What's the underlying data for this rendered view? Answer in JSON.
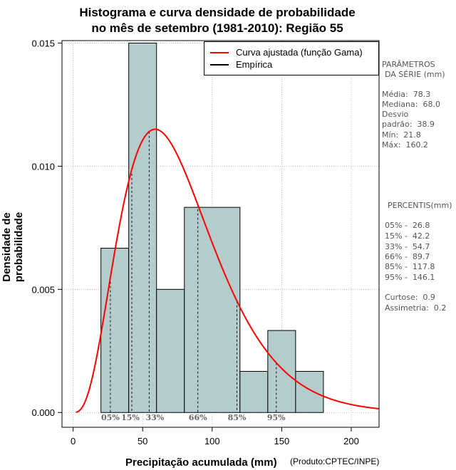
{
  "title": {
    "line1": "Histograma e curva densidade de probabilidade",
    "line2": "no mês de setembro (1981-2010): Região 55"
  },
  "axes": {
    "xlabel": "Precipitação acumulada (mm)",
    "ylabel": "Densidade de probabilidade",
    "credit": "(Produto:CPTEC/INPE)"
  },
  "legend": {
    "fitted": "Curva ajustada (função Gama)",
    "empirical": "Empírica"
  },
  "params": {
    "header1": "PARÂMETROS",
    "header2": "DA SÉRIE (mm)",
    "mean": "Média:  78.3",
    "median": "Mediana:  68.0",
    "sd_label": "Desvio",
    "sd": "padrão:  38.9",
    "min": "Mín:  21.8",
    "max": "Máx:  160.2"
  },
  "percentiles": {
    "header": "PERCENTIS(mm)",
    "p05": "05% -  26.8",
    "p15": "15% -  42.2",
    "p33": "33% -  54.7",
    "p66": "66% -  89.7",
    "p85": "85% -  117.8",
    "p95": "95% -  146.1",
    "kurtosis": "Curtose:  0.9",
    "skewness": "Assimetria:  0.2"
  },
  "colors": {
    "bar_fill": "#b4cccc",
    "curve": "#ff0000",
    "grid": "#aaaaaa"
  },
  "chart_data": {
    "type": "bar",
    "title": "Histograma e curva densidade de probabilidade no mês de setembro (1981-2010): Região 55",
    "xlabel": "Precipitação acumulada (mm)",
    "ylabel": "Densidade de probabilidade",
    "xlim": [
      -8,
      220
    ],
    "ylim": [
      -0.0006,
      0.0151
    ],
    "xticks": [
      0,
      50,
      100,
      150,
      200
    ],
    "yticks": [
      0.0,
      0.005,
      0.01,
      0.015
    ],
    "ytick_labels": [
      "0.000",
      "0.005",
      "0.010",
      "0.015"
    ],
    "bins": [
      {
        "start": 20,
        "end": 40,
        "density": 0.00667
      },
      {
        "start": 40,
        "end": 60,
        "density": 0.015
      },
      {
        "start": 60,
        "end": 80,
        "density": 0.005
      },
      {
        "start": 80,
        "end": 120,
        "density": 0.00833
      },
      {
        "start": 120,
        "end": 140,
        "density": 0.00167
      },
      {
        "start": 140,
        "end": 160,
        "density": 0.00333
      },
      {
        "start": 160,
        "end": 180,
        "density": 0.00167
      }
    ],
    "gamma_fit": {
      "shape": 4.05,
      "scale": 19.33,
      "name": "Curva ajustada (função Gama)"
    },
    "percentile_lines": [
      {
        "label": "05%",
        "value": 26.8
      },
      {
        "label": "15%",
        "value": 42.2
      },
      {
        "label": "33%",
        "value": 54.7
      },
      {
        "label": "66%",
        "value": 89.7
      },
      {
        "label": "85%",
        "value": 117.8
      },
      {
        "label": "95%",
        "value": 146.1
      }
    ],
    "grid": true,
    "legend_position": "top-right"
  }
}
